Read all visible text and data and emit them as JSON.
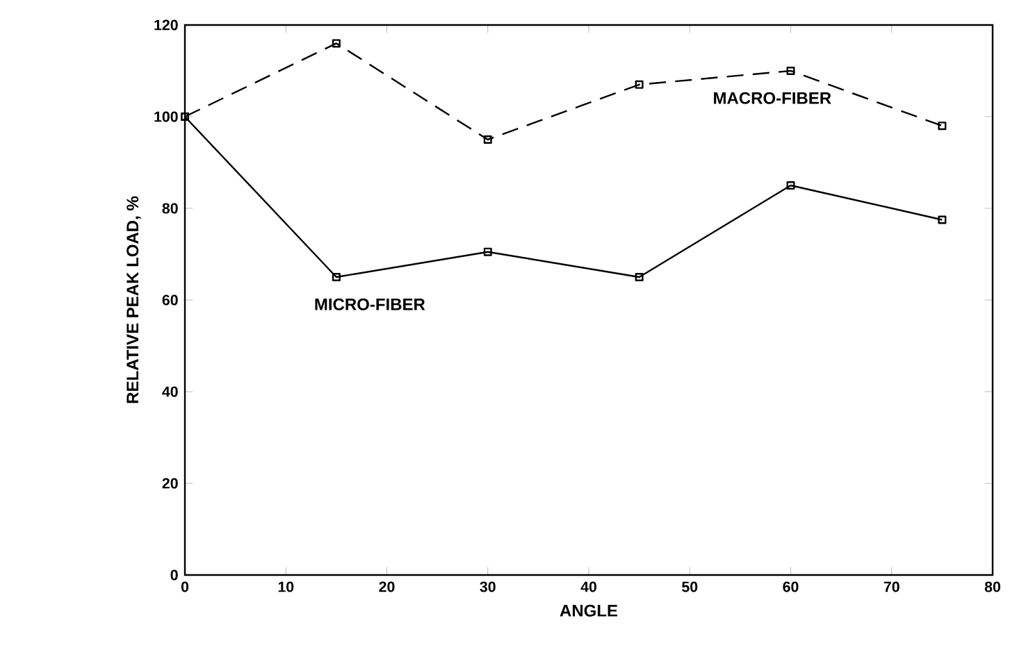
{
  "chart_data": {
    "type": "line",
    "xlabel": "ANGLE",
    "ylabel": "RELATIVE PEAK LOAD, %",
    "x": [
      0,
      15,
      30,
      45,
      60,
      75
    ],
    "series": [
      {
        "name": "MACRO-FIBER",
        "color": "#000000",
        "line_style": "dashed",
        "values": [
          100,
          116,
          95,
          107,
          110,
          98
        ]
      },
      {
        "name": "MICRO-FIBER",
        "color": "#000000",
        "line_style": "solid",
        "values": [
          100,
          65,
          70.5,
          65,
          85,
          77.5
        ]
      }
    ],
    "xlim": [
      0,
      80
    ],
    "ylim": [
      0,
      120
    ],
    "xticks": [
      0,
      10,
      20,
      30,
      40,
      50,
      60,
      70,
      80
    ],
    "yticks": [
      0,
      20,
      40,
      60,
      80,
      100,
      120
    ],
    "marker": "square",
    "grid": false
  }
}
